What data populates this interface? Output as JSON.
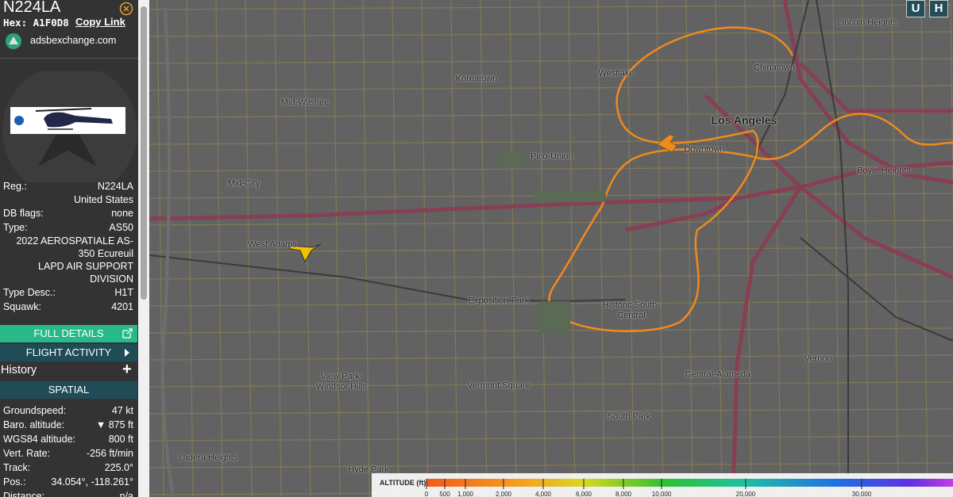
{
  "sidebar": {
    "callsign": "N224LA",
    "hex_label": "Hex:",
    "hex": "A1F0D8",
    "copy_link": "Copy Link",
    "source": "adsbexchange.com",
    "details": [
      {
        "label": "Reg.:",
        "value": "N224LA"
      },
      {
        "value": "United States"
      },
      {
        "label": "DB flags:",
        "value": "none"
      },
      {
        "label": "Type:",
        "value": "AS50"
      },
      {
        "value": "2022 AEROSPATIALE AS-350 Ecureuil"
      },
      {
        "value": "LAPD AIR SUPPORT DIVISION"
      },
      {
        "label": "Type Desc.:",
        "value": "H1T"
      },
      {
        "label": "Squawk:",
        "value": "4201"
      }
    ],
    "full_details": "FULL DETAILS",
    "flight_activity": "FLIGHT ACTIVITY",
    "history": "History",
    "history_toggle": "+",
    "section": "SPATIAL",
    "spatial": [
      {
        "label": "Groundspeed:",
        "value": "47 kt"
      },
      {
        "label": "Baro. altitude:",
        "value": "▼ 875 ft"
      },
      {
        "label": "WGS84 altitude:",
        "value": "800 ft"
      },
      {
        "label": "Vert. Rate:",
        "value": "-256 ft/min"
      },
      {
        "label": "Track:",
        "value": "225.0°"
      },
      {
        "label": "Pos.:",
        "value": "34.054°, -118.261°"
      },
      {
        "label": "Distance:",
        "value": "n/a"
      }
    ]
  },
  "map": {
    "buttons": [
      "U",
      "H"
    ],
    "places": [
      "Koreatown",
      "Westlake",
      "Chinatown",
      "Lincoln Heights",
      "Mid-Wilshire",
      "Los Angeles",
      "Downtown",
      "Pico-Union",
      "Boyle Heights",
      "Mid-City",
      "West Adams",
      "Exposition Park",
      "Historic South-Central",
      "Vernon",
      "Central-Alameda",
      "View Park-Windsor Hills",
      "Vermont Square",
      "South Park",
      "Ladera Heights",
      "Hyde Park"
    ],
    "legend": {
      "title": "ALTITUDE (ft)",
      "ticks": [
        "0",
        "500",
        "1,000",
        "2,000",
        "4,000",
        "6,000",
        "8,000",
        "10,000",
        "20,000",
        "30,000"
      ]
    }
  }
}
